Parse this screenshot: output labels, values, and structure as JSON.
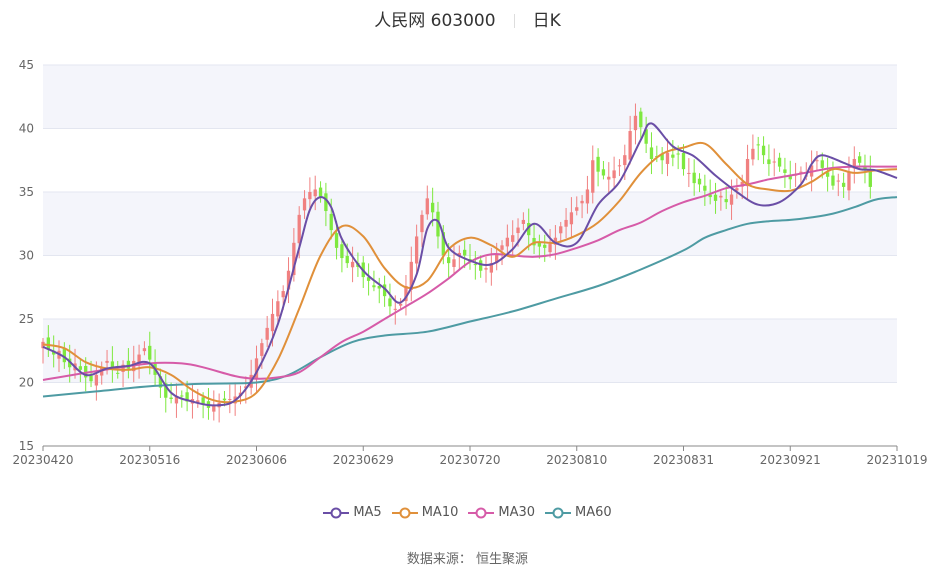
{
  "header": {
    "stock": "人民网 603000",
    "period": "日K"
  },
  "footer": {
    "source": "数据来源： 恒生聚源"
  },
  "chart_data": {
    "type": "candlestick",
    "ylim": [
      15,
      45
    ],
    "yticks": [
      15,
      20,
      25,
      30,
      35,
      40,
      45
    ],
    "grid": true,
    "legend_position": "bottom",
    "x_tick_labels": [
      "20230420",
      "20230516",
      "20230606",
      "20230629",
      "20230720",
      "20230810",
      "20230831",
      "20230921",
      "20231019"
    ],
    "x_tick_index": [
      0,
      20,
      40,
      60,
      80,
      100,
      120,
      140,
      160
    ],
    "n_bars": 161,
    "colors": {
      "up": "#f08080",
      "down": "#7ee83f"
    },
    "closes": [
      23.2,
      22.6,
      22.2,
      22.5,
      21.6,
      21.2,
      21.5,
      21.0,
      20.4,
      20.1,
      20.6,
      21.2,
      21.7,
      21.1,
      20.7,
      21.4,
      21.1,
      21.7,
      22.2,
      22.7,
      21.8,
      20.6,
      19.6,
      18.8,
      18.7,
      18.9,
      18.9,
      18.5,
      18.7,
      18.6,
      18.3,
      18.0,
      18.2,
      18.4,
      18.6,
      18.7,
      18.9,
      19.2,
      19.7,
      20.6,
      21.9,
      23.1,
      24.3,
      25.4,
      26.4,
      27.2,
      28.8,
      31.0,
      33.2,
      34.5,
      35.0,
      35.2,
      34.6,
      33.5,
      32.0,
      30.6,
      29.8,
      29.4,
      29.5,
      29.1,
      28.3,
      28.0,
      27.5,
      27.4,
      26.8,
      26.0,
      25.8,
      26.2,
      27.6,
      29.5,
      31.5,
      33.2,
      34.5,
      33.4,
      31.5,
      30.0,
      29.4,
      29.7,
      30.2,
      30.0,
      29.5,
      29.3,
      28.8,
      29.0,
      29.4,
      30.1,
      30.8,
      31.4,
      31.6,
      32.2,
      32.8,
      31.6,
      30.8,
      30.7,
      30.6,
      30.9,
      31.4,
      32.3,
      32.8,
      33.4,
      33.8,
      34.3,
      35.2,
      37.5,
      36.6,
      36.3,
      36.2,
      36.7,
      37.1,
      37.9,
      39.8,
      41.0,
      40.1,
      38.8,
      37.6,
      37.8,
      37.5,
      38.1,
      37.7,
      38.0,
      36.8,
      36.5,
      35.7,
      35.6,
      35.1,
      34.6,
      34.3,
      34.7,
      34.2,
      34.8,
      35.3,
      35.8,
      37.6,
      38.4,
      38.7,
      37.9,
      37.2,
      37.4,
      37.0,
      36.5,
      36.0,
      36.4,
      36.6,
      36.3,
      37.1,
      37.5,
      36.9,
      36.2,
      35.5,
      35.9,
      35.4,
      36.6,
      37.6,
      37.3,
      36.8,
      35.4
    ],
    "series": [
      {
        "name": "MA5",
        "color": "#6a4ea6",
        "points": [
          [
            0,
            22.8
          ],
          [
            4,
            22.0
          ],
          [
            8,
            20.6
          ],
          [
            12,
            21.1
          ],
          [
            16,
            21.3
          ],
          [
            20,
            21.5
          ],
          [
            24,
            19.2
          ],
          [
            28,
            18.5
          ],
          [
            32,
            18.2
          ],
          [
            36,
            18.6
          ],
          [
            40,
            20.8
          ],
          [
            44,
            24.6
          ],
          [
            48,
            30.6
          ],
          [
            50,
            33.6
          ],
          [
            52,
            34.6
          ],
          [
            54,
            33.8
          ],
          [
            56,
            31.3
          ],
          [
            60,
            28.8
          ],
          [
            64,
            27.4
          ],
          [
            67,
            26.3
          ],
          [
            70,
            28.5
          ],
          [
            72,
            32.1
          ],
          [
            74,
            32.7
          ],
          [
            76,
            30.6
          ],
          [
            80,
            29.6
          ],
          [
            84,
            29.3
          ],
          [
            88,
            30.5
          ],
          [
            92,
            32.5
          ],
          [
            96,
            31.0
          ],
          [
            100,
            31.0
          ],
          [
            104,
            34.0
          ],
          [
            108,
            35.8
          ],
          [
            112,
            39.1
          ],
          [
            114,
            40.4
          ],
          [
            118,
            38.6
          ],
          [
            122,
            37.8
          ],
          [
            126,
            36.3
          ],
          [
            130,
            35.0
          ],
          [
            134,
            34.0
          ],
          [
            138,
            34.2
          ],
          [
            142,
            35.6
          ],
          [
            144,
            37.2
          ],
          [
            146,
            37.9
          ],
          [
            150,
            37.3
          ],
          [
            153,
            36.8
          ],
          [
            156,
            36.7
          ],
          [
            160,
            36.1
          ]
        ]
      },
      {
        "name": "MA10",
        "color": "#e0903a",
        "points": [
          [
            0,
            23.0
          ],
          [
            4,
            22.7
          ],
          [
            8,
            21.6
          ],
          [
            12,
            21.1
          ],
          [
            16,
            21.0
          ],
          [
            20,
            21.2
          ],
          [
            24,
            20.6
          ],
          [
            28,
            19.4
          ],
          [
            32,
            18.6
          ],
          [
            36,
            18.5
          ],
          [
            40,
            19.2
          ],
          [
            44,
            21.8
          ],
          [
            48,
            25.8
          ],
          [
            52,
            30.0
          ],
          [
            56,
            32.3
          ],
          [
            60,
            31.5
          ],
          [
            64,
            29.0
          ],
          [
            68,
            27.5
          ],
          [
            72,
            28.0
          ],
          [
            76,
            30.5
          ],
          [
            80,
            31.4
          ],
          [
            84,
            30.8
          ],
          [
            88,
            29.9
          ],
          [
            92,
            31.0
          ],
          [
            96,
            31.0
          ],
          [
            100,
            31.6
          ],
          [
            104,
            32.6
          ],
          [
            108,
            34.3
          ],
          [
            112,
            36.5
          ],
          [
            116,
            38.0
          ],
          [
            120,
            38.5
          ],
          [
            124,
            38.8
          ],
          [
            128,
            37.2
          ],
          [
            132,
            35.6
          ],
          [
            136,
            35.2
          ],
          [
            140,
            35.1
          ],
          [
            144,
            35.8
          ],
          [
            148,
            36.8
          ],
          [
            152,
            36.5
          ],
          [
            156,
            36.7
          ],
          [
            160,
            36.8
          ]
        ]
      },
      {
        "name": "MA30",
        "color": "#d65ba8",
        "points": [
          [
            0,
            20.2
          ],
          [
            10,
            20.9
          ],
          [
            20,
            21.5
          ],
          [
            26,
            21.5
          ],
          [
            30,
            21.2
          ],
          [
            36,
            20.5
          ],
          [
            40,
            20.3
          ],
          [
            44,
            20.4
          ],
          [
            48,
            20.8
          ],
          [
            52,
            22.0
          ],
          [
            56,
            23.2
          ],
          [
            60,
            24.0
          ],
          [
            64,
            25.0
          ],
          [
            68,
            26.0
          ],
          [
            72,
            27.0
          ],
          [
            76,
            28.2
          ],
          [
            80,
            29.5
          ],
          [
            84,
            30.1
          ],
          [
            88,
            30.0
          ],
          [
            92,
            29.9
          ],
          [
            96,
            30.1
          ],
          [
            100,
            30.6
          ],
          [
            104,
            31.2
          ],
          [
            108,
            32.0
          ],
          [
            112,
            32.6
          ],
          [
            116,
            33.5
          ],
          [
            120,
            34.2
          ],
          [
            124,
            34.7
          ],
          [
            128,
            35.3
          ],
          [
            132,
            35.6
          ],
          [
            136,
            36.0
          ],
          [
            140,
            36.3
          ],
          [
            144,
            36.6
          ],
          [
            148,
            36.9
          ],
          [
            152,
            37.0
          ],
          [
            156,
            37.0
          ],
          [
            160,
            37.0
          ]
        ]
      },
      {
        "name": "MA60",
        "color": "#4e9ba3",
        "points": [
          [
            0,
            18.9
          ],
          [
            10,
            19.3
          ],
          [
            20,
            19.7
          ],
          [
            30,
            19.9
          ],
          [
            40,
            20.0
          ],
          [
            46,
            20.6
          ],
          [
            52,
            22.0
          ],
          [
            58,
            23.2
          ],
          [
            64,
            23.7
          ],
          [
            72,
            24.0
          ],
          [
            80,
            24.8
          ],
          [
            88,
            25.6
          ],
          [
            96,
            26.6
          ],
          [
            104,
            27.6
          ],
          [
            112,
            28.9
          ],
          [
            120,
            30.4
          ],
          [
            124,
            31.4
          ],
          [
            128,
            32.0
          ],
          [
            132,
            32.5
          ],
          [
            136,
            32.7
          ],
          [
            140,
            32.8
          ],
          [
            144,
            33.0
          ],
          [
            148,
            33.3
          ],
          [
            152,
            33.8
          ],
          [
            156,
            34.4
          ],
          [
            160,
            34.6
          ]
        ]
      }
    ]
  }
}
